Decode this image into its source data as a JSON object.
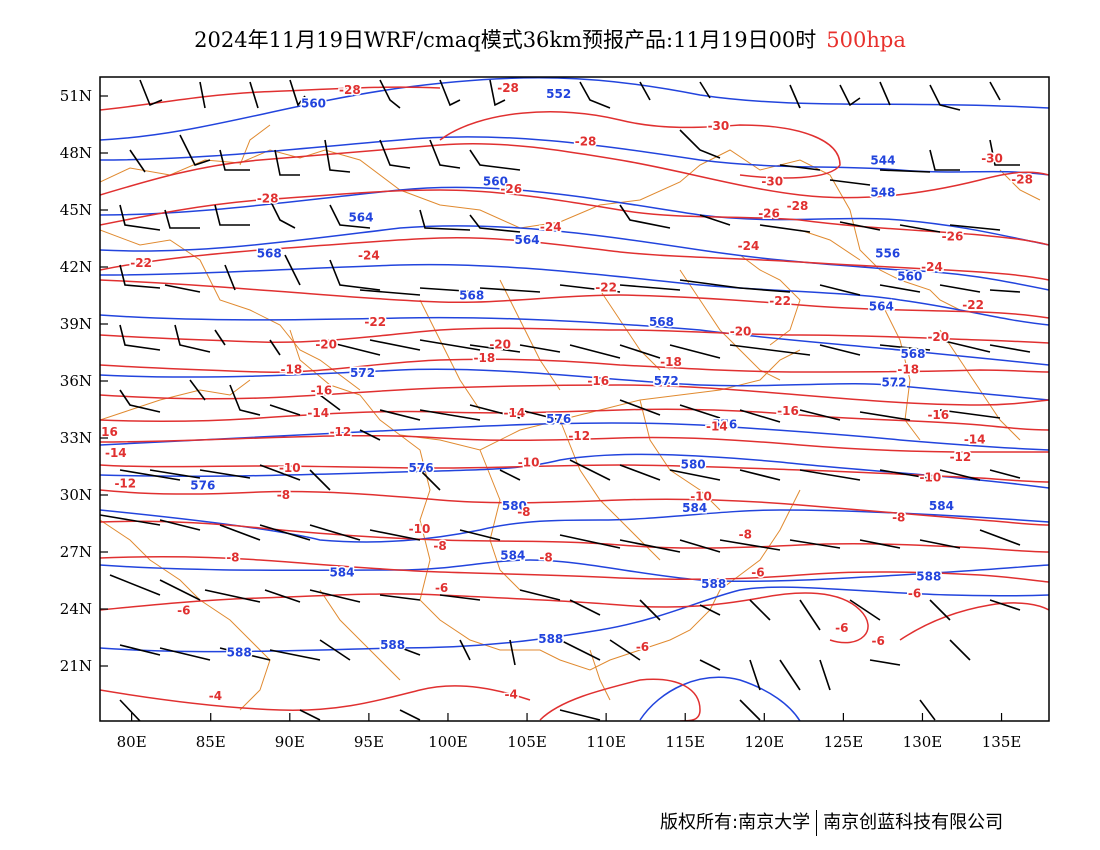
{
  "header": {
    "title": "2024年11月19日WRF/cmaq模式36km预报产品:11月19日00时",
    "level": "500hpa"
  },
  "footer": {
    "copyright": "版权所有:南京大学",
    "company": "南京创蓝科技有限公司"
  },
  "colors": {
    "height_contour": "#2244dd",
    "temperature_contour": "#e03030",
    "boundary": "#e08a30",
    "wind_barb": "#000000"
  },
  "map": {
    "lon_range": [
      78,
      138
    ],
    "lat_range": [
      50,
      52
    ],
    "lat_ticks": [
      "51N",
      "48N",
      "45N",
      "42N",
      "39N",
      "36N",
      "33N",
      "30N",
      "27N",
      "24N",
      "21N"
    ],
    "lat_values": [
      51,
      48,
      45,
      42,
      39,
      36,
      33,
      30,
      27,
      24,
      21
    ],
    "lon_ticks": [
      "80E",
      "85E",
      "90E",
      "95E",
      "100E",
      "105E",
      "110E",
      "115E",
      "120E",
      "125E",
      "130E",
      "135E"
    ],
    "lon_values": [
      80,
      85,
      90,
      95,
      100,
      105,
      110,
      115,
      120,
      125,
      130,
      135
    ],
    "height_labels": [
      {
        "text": "560",
        "lon": 91.5,
        "lat": 50.4
      },
      {
        "text": "552",
        "lon": 107,
        "lat": 50.9
      },
      {
        "text": "560",
        "lon": 103,
        "lat": 46.3
      },
      {
        "text": "564",
        "lon": 94.5,
        "lat": 44.4
      },
      {
        "text": "564",
        "lon": 105,
        "lat": 43.2
      },
      {
        "text": "568",
        "lon": 88.7,
        "lat": 42.5
      },
      {
        "text": "568",
        "lon": 101.5,
        "lat": 40.3
      },
      {
        "text": "568",
        "lon": 113.5,
        "lat": 38.9
      },
      {
        "text": "572",
        "lon": 94.6,
        "lat": 36.2
      },
      {
        "text": "572",
        "lon": 113.8,
        "lat": 35.8
      },
      {
        "text": "576",
        "lon": 107,
        "lat": 33.8
      },
      {
        "text": "576",
        "lon": 117.5,
        "lat": 33.5
      },
      {
        "text": "576",
        "lon": 84.5,
        "lat": 30.3
      },
      {
        "text": "576",
        "lon": 98.3,
        "lat": 31.2
      },
      {
        "text": "580",
        "lon": 104.2,
        "lat": 29.2
      },
      {
        "text": "580",
        "lon": 115.5,
        "lat": 31.4
      },
      {
        "text": "584",
        "lon": 93.3,
        "lat": 25.7
      },
      {
        "text": "584",
        "lon": 104.1,
        "lat": 26.6
      },
      {
        "text": "584",
        "lon": 115.6,
        "lat": 29.1
      },
      {
        "text": "584",
        "lon": 131.2,
        "lat": 29.2
      },
      {
        "text": "588",
        "lon": 86.8,
        "lat": 21.5
      },
      {
        "text": "588",
        "lon": 96.5,
        "lat": 21.9
      },
      {
        "text": "588",
        "lon": 106.5,
        "lat": 22.2
      },
      {
        "text": "588",
        "lon": 116.8,
        "lat": 25.1
      },
      {
        "text": "588",
        "lon": 130.4,
        "lat": 25.5
      },
      {
        "text": "544",
        "lon": 127.5,
        "lat": 47.4
      },
      {
        "text": "548",
        "lon": 127.5,
        "lat": 45.7
      },
      {
        "text": "556",
        "lon": 127.8,
        "lat": 42.5
      },
      {
        "text": "560",
        "lon": 129.2,
        "lat": 41.3
      },
      {
        "text": "564",
        "lon": 127.4,
        "lat": 39.7
      },
      {
        "text": "568",
        "lon": 129.4,
        "lat": 37.2
      },
      {
        "text": "572",
        "lon": 128.2,
        "lat": 35.7
      }
    ],
    "temp_labels": [
      {
        "text": "-28",
        "lon": 93.8,
        "lat": 51.1
      },
      {
        "text": "-28",
        "lon": 103.8,
        "lat": 51.2
      },
      {
        "text": "-28",
        "lon": 108.7,
        "lat": 48.4
      },
      {
        "text": "-30",
        "lon": 117.1,
        "lat": 49.2
      },
      {
        "text": "-30",
        "lon": 120.5,
        "lat": 46.3
      },
      {
        "text": "-30",
        "lon": 134.4,
        "lat": 47.5
      },
      {
        "text": "-28",
        "lon": 136.3,
        "lat": 46.4
      },
      {
        "text": "-28",
        "lon": 122.1,
        "lat": 45.0
      },
      {
        "text": "-28",
        "lon": 88.6,
        "lat": 45.4
      },
      {
        "text": "-26",
        "lon": 104.0,
        "lat": 45.9
      },
      {
        "text": "-26",
        "lon": 120.3,
        "lat": 44.6
      },
      {
        "text": "-26",
        "lon": 131.9,
        "lat": 43.4
      },
      {
        "text": "-24",
        "lon": 106.5,
        "lat": 43.9
      },
      {
        "text": "-24",
        "lon": 95.0,
        "lat": 42.4
      },
      {
        "text": "-24",
        "lon": 119.0,
        "lat": 42.9
      },
      {
        "text": "-24",
        "lon": 130.6,
        "lat": 41.8
      },
      {
        "text": "-22",
        "lon": 80.6,
        "lat": 42.0
      },
      {
        "text": "-22",
        "lon": 110.0,
        "lat": 40.7
      },
      {
        "text": "-22",
        "lon": 121.0,
        "lat": 40.0
      },
      {
        "text": "-22",
        "lon": 133.2,
        "lat": 39.8
      },
      {
        "text": "-22",
        "lon": 95.4,
        "lat": 38.9
      },
      {
        "text": "-20",
        "lon": 92.3,
        "lat": 37.7
      },
      {
        "text": "-20",
        "lon": 103.3,
        "lat": 37.7
      },
      {
        "text": "-20",
        "lon": 118.5,
        "lat": 38.4
      },
      {
        "text": "-20",
        "lon": 131.0,
        "lat": 38.1
      },
      {
        "text": "-18",
        "lon": 90.1,
        "lat": 36.4
      },
      {
        "text": "-18",
        "lon": 102.3,
        "lat": 37.0
      },
      {
        "text": "-18",
        "lon": 114.1,
        "lat": 36.8
      },
      {
        "text": "-18",
        "lon": 129.1,
        "lat": 36.4
      },
      {
        "text": "-16",
        "lon": 92.0,
        "lat": 35.3
      },
      {
        "text": "-16",
        "lon": 109.5,
        "lat": 35.8
      },
      {
        "text": "-16",
        "lon": 121.5,
        "lat": 34.2
      },
      {
        "text": "-16",
        "lon": 131.0,
        "lat": 34.0
      },
      {
        "text": "-14",
        "lon": 91.8,
        "lat": 34.1
      },
      {
        "text": "-14",
        "lon": 104.2,
        "lat": 34.1
      },
      {
        "text": "-14",
        "lon": 117.0,
        "lat": 33.4
      },
      {
        "text": "-14",
        "lon": 133.3,
        "lat": 32.7
      },
      {
        "text": "-12",
        "lon": 93.2,
        "lat": 33.1
      },
      {
        "text": "-12",
        "lon": 108.3,
        "lat": 32.9
      },
      {
        "text": "-12",
        "lon": 132.4,
        "lat": 31.8
      },
      {
        "text": "16",
        "lon": 78.6,
        "lat": 33.1
      },
      {
        "text": "-14",
        "lon": 79.0,
        "lat": 32.0
      },
      {
        "text": "-10",
        "lon": 105.1,
        "lat": 31.5
      },
      {
        "text": "-10",
        "lon": 90.0,
        "lat": 31.2
      },
      {
        "text": "-10",
        "lon": 116.0,
        "lat": 29.7
      },
      {
        "text": "-10",
        "lon": 130.5,
        "lat": 30.7
      },
      {
        "text": "-12",
        "lon": 79.6,
        "lat": 30.4
      },
      {
        "text": "-8",
        "lon": 89.6,
        "lat": 29.8
      },
      {
        "text": "-8",
        "lon": 104.8,
        "lat": 28.9
      },
      {
        "text": "-10",
        "lon": 98.2,
        "lat": 28.0
      },
      {
        "text": "-8",
        "lon": 99.5,
        "lat": 27.1
      },
      {
        "text": "-8",
        "lon": 86.4,
        "lat": 26.5
      },
      {
        "text": "-8",
        "lon": 106.2,
        "lat": 26.5
      },
      {
        "text": "-8",
        "lon": 118.8,
        "lat": 27.7
      },
      {
        "text": "-8",
        "lon": 128.5,
        "lat": 28.6
      },
      {
        "text": "-6",
        "lon": 99.6,
        "lat": 24.9
      },
      {
        "text": "-6",
        "lon": 119.6,
        "lat": 25.7
      },
      {
        "text": "-6",
        "lon": 83.3,
        "lat": 23.7
      },
      {
        "text": "-6",
        "lon": 129.5,
        "lat": 24.6
      },
      {
        "text": "-6",
        "lon": 124.9,
        "lat": 22.8
      },
      {
        "text": "-6",
        "lon": 127.2,
        "lat": 22.1
      },
      {
        "text": "-6",
        "lon": 112.3,
        "lat": 21.8
      },
      {
        "text": "-4",
        "lon": 85.3,
        "lat": 19.2
      },
      {
        "text": "-4",
        "lon": 104.0,
        "lat": 19.3
      }
    ]
  }
}
